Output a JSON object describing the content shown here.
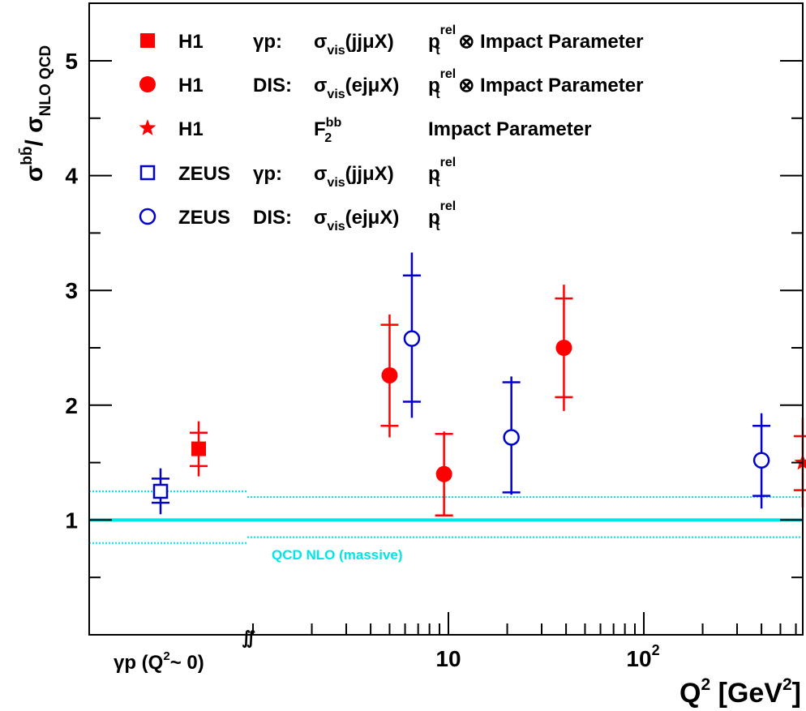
{
  "chart_data": {
    "type": "scatter",
    "title": "",
    "xlabel": "Q",
    "xlabel_sup": "2",
    "xlabel_unit_open": " [GeV",
    "xlabel_unit_sup": "2",
    "xlabel_unit_close": "]",
    "ylabel": {
      "sigma": "σ",
      "bb": "bb̄",
      "slash": "/ σ",
      "sub": "NLO QCD"
    },
    "xscale": "log with γp column",
    "xlim": [
      1.6,
      1000
    ],
    "ylim": [
      0,
      5.5
    ],
    "y_ticks": [
      "1",
      "2",
      "3",
      "4",
      "5"
    ],
    "x_ticks": [
      {
        "label": "10",
        "sup": ""
      },
      {
        "label": "10",
        "sup": "2"
      }
    ],
    "gammap_label": {
      "a": "γp  (Q",
      "sup": "2",
      "b": "~ 0)"
    },
    "break_symbol": "∬",
    "nlo": {
      "label": "QCD NLO (massive)",
      "central": 1.0,
      "band_gammap": [
        0.8,
        1.25
      ],
      "band_dis": [
        0.85,
        1.2
      ],
      "color": "#00e5e5"
    },
    "legend": [
      {
        "marker": "square-filled",
        "color": "#ff0000",
        "exp": "H1",
        "proc": "γp:",
        "obs": "σvis(jjμX)",
        "method": "ptrel ⊗ Impact Parameter"
      },
      {
        "marker": "circle-filled",
        "color": "#ff0000",
        "exp": "H1",
        "proc": "DIS:",
        "obs": "σvis(ejμX)",
        "method": "ptrel ⊗ Impact Parameter"
      },
      {
        "marker": "star",
        "color": "#ff0000",
        "exp": "H1",
        "proc": "",
        "obs": "F2bb",
        "method": "Impact Parameter"
      },
      {
        "marker": "square-open",
        "color": "#0000cc",
        "exp": "ZEUS",
        "proc": "γp:",
        "obs": "σvis(jjμX)",
        "method": "ptrel"
      },
      {
        "marker": "circle-open",
        "color": "#0000cc",
        "exp": "ZEUS",
        "proc": "DIS:",
        "obs": "σvis(ejμX)",
        "method": "ptrel"
      }
    ],
    "series": [
      {
        "name": "H1 γp",
        "marker": "square-filled",
        "color": "#ff0000",
        "points": [
          {
            "x": "γp",
            "y": 1.62,
            "stat": [
              1.47,
              1.76
            ],
            "tot": [
              1.38,
              1.86
            ]
          }
        ]
      },
      {
        "name": "H1 DIS",
        "marker": "circle-filled",
        "color": "#ff0000",
        "points": [
          {
            "x": 5.0,
            "y": 2.26,
            "stat": [
              1.82,
              2.7
            ],
            "tot": [
              1.72,
              2.79
            ]
          },
          {
            "x": 9.5,
            "y": 1.4,
            "stat": [
              1.04,
              1.75
            ],
            "tot": [
              1.04,
              1.77
            ]
          },
          {
            "x": 39,
            "y": 2.5,
            "stat": [
              2.07,
              2.93
            ],
            "tot": [
              1.95,
              3.05
            ]
          }
        ]
      },
      {
        "name": "H1 F2bb",
        "marker": "star",
        "color": "#ff0000",
        "points": [
          {
            "x": 650,
            "y": 1.5,
            "stat": [
              1.26,
              1.73
            ],
            "tot": [
              1.11,
              1.89
            ]
          }
        ]
      },
      {
        "name": "ZEUS γp",
        "marker": "square-open",
        "color": "#0000cc",
        "points": [
          {
            "x": "γp",
            "y": 1.25,
            "stat": [
              1.15,
              1.36
            ],
            "tot": [
              1.05,
              1.45
            ]
          }
        ]
      },
      {
        "name": "ZEUS DIS",
        "marker": "circle-open",
        "color": "#0000cc",
        "points": [
          {
            "x": 6.5,
            "y": 2.58,
            "stat": [
              2.03,
              3.13
            ],
            "tot": [
              1.89,
              3.33
            ]
          },
          {
            "x": 21,
            "y": 1.72,
            "stat": [
              1.24,
              2.2
            ],
            "tot": [
              1.22,
              2.25
            ]
          },
          {
            "x": 400,
            "y": 1.52,
            "stat": [
              1.21,
              1.82
            ],
            "tot": [
              1.1,
              1.93
            ]
          }
        ]
      }
    ]
  }
}
